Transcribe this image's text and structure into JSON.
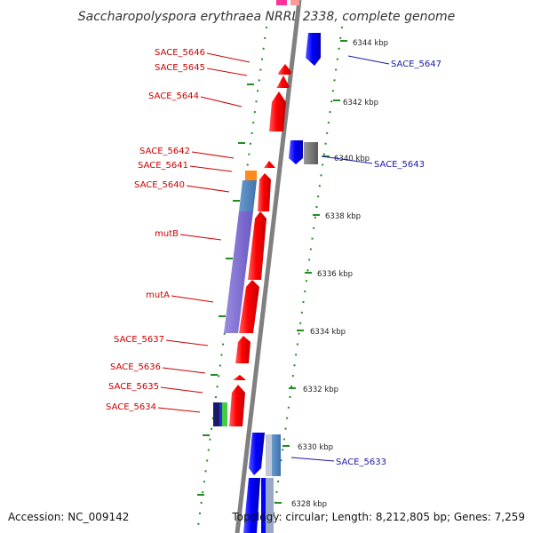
{
  "title": "Saccharopolyspora erythraea NRRL 2338, complete genome",
  "footer": {
    "accession": "Accession: NC_009142",
    "summary": "Topology: circular; Length: 8,212,805 bp; Genes: 7,259"
  },
  "ticks": [
    "6344 kbp",
    "6342 kbp",
    "6340 kbp",
    "6338 kbp",
    "6336 kbp",
    "6334 kbp",
    "6332 kbp",
    "6330 kbp",
    "6328 kbp"
  ],
  "left_labels": [
    "SACE_5646",
    "SACE_5645",
    "SACE_5644",
    "SACE_5642",
    "SACE_5641",
    "SACE_5640",
    "mutB",
    "mutA",
    "SACE_5637",
    "SACE_5636",
    "SACE_5635",
    "SACE_5634"
  ],
  "right_labels": [
    "SACE_5647",
    "SACE_5643",
    "SACE_5633"
  ],
  "colors": {
    "forward_gene": "#ff0000",
    "reverse_gene": "#0000ff",
    "left_label": "#cc0000",
    "right_label": "#1a1aa8",
    "backbone": "#808080",
    "dotted_guide": "#228b22",
    "mut_domain": "#7b68d0"
  }
}
